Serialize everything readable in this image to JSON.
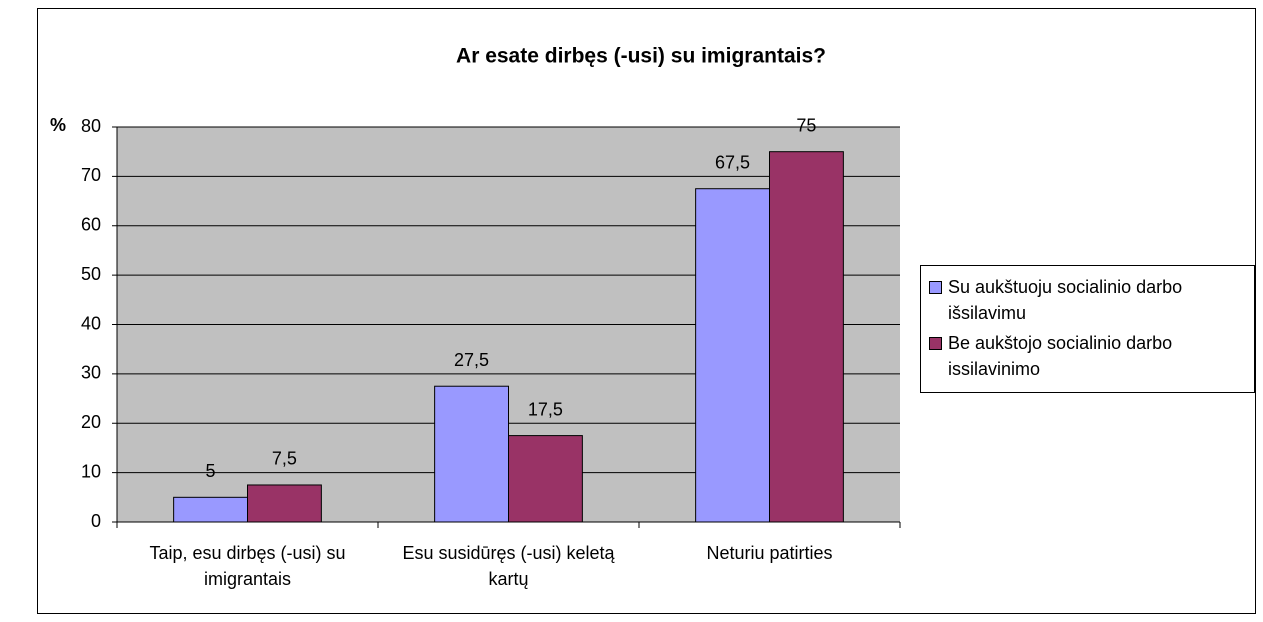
{
  "chart_data": {
    "type": "bar",
    "title": "Ar esate dirbęs (-usi) su imigrantais?",
    "y_label": "%",
    "categories": [
      "Taip, esu dirbęs (-usi) su imigrantais",
      "Esu susidūręs (-usi) keletą kartų",
      "Neturiu patirties"
    ],
    "series": [
      {
        "name": "Su aukštuoju socialinio darbo išsilavimu",
        "color": "#9999ff",
        "values": [
          5,
          27.5,
          67.5
        ],
        "value_labels": [
          "5",
          "27,5",
          "67,5"
        ]
      },
      {
        "name": "Be aukštojo socialinio darbo issilavinimo",
        "color": "#993366",
        "values": [
          7.5,
          17.5,
          75
        ],
        "value_labels": [
          "7,5",
          "17,5",
          "75"
        ]
      }
    ],
    "ylim": [
      0,
      80
    ],
    "yticks": [
      0,
      10,
      20,
      30,
      40,
      50,
      60,
      70,
      80
    ],
    "grid": true,
    "legend": "right"
  }
}
